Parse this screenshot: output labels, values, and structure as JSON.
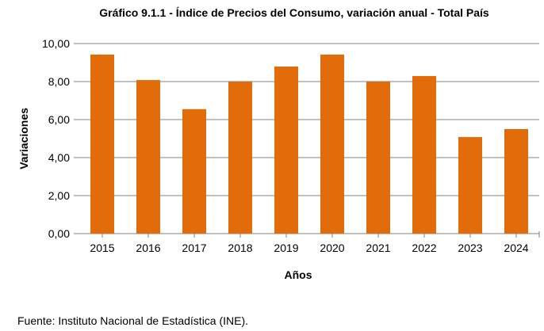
{
  "chart_data": {
    "type": "bar",
    "title": "Gráfico 9.1.1 - Índice de Precios del Consumo, variación anual - Total País",
    "xlabel": "Años",
    "ylabel": "Variaciones",
    "categories": [
      "2015",
      "2016",
      "2017",
      "2018",
      "2019",
      "2020",
      "2021",
      "2022",
      "2023",
      "2024"
    ],
    "values": [
      9.42,
      8.08,
      6.55,
      7.99,
      8.79,
      9.42,
      7.99,
      8.29,
      5.08,
      5.5
    ],
    "ylim": [
      0,
      10
    ],
    "yticks": [
      0,
      2,
      4,
      6,
      8,
      10
    ],
    "ytick_labels": [
      "0,00",
      "2,00",
      "4,00",
      "6,00",
      "8,00",
      "10,00"
    ],
    "grid": true,
    "legend": "none",
    "bar_color": "#E36C0A",
    "grid_color": "#808080"
  },
  "footer": {
    "source": "Fuente: Instituto Nacional de Estadística (INE)."
  }
}
